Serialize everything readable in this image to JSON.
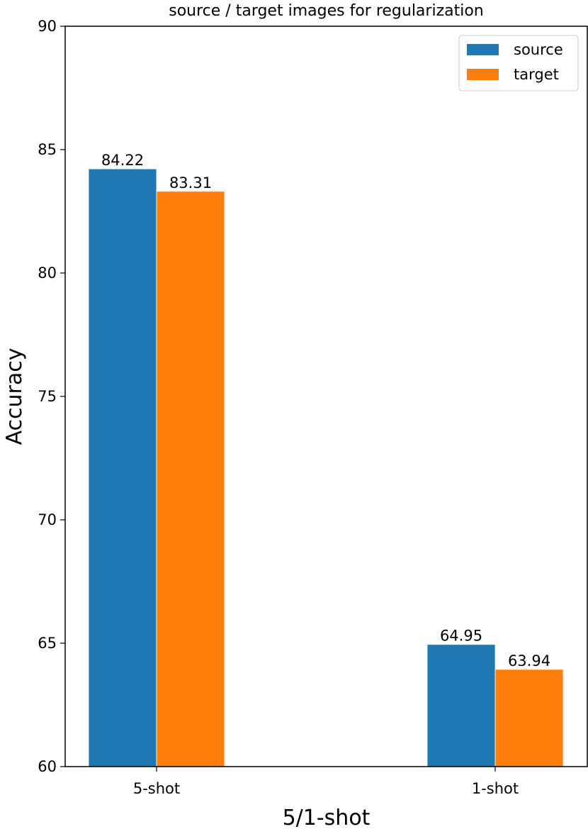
{
  "chart_data": {
    "type": "bar",
    "title": "source / target images for regularization",
    "xlabel": "5/1-shot",
    "ylabel": "Accuracy",
    "categories": [
      "5-shot",
      "1-shot"
    ],
    "series": [
      {
        "name": "source",
        "values": [
          84.22,
          64.95
        ],
        "labels": [
          "84.22",
          "64.95"
        ],
        "color": "#1f77b4"
      },
      {
        "name": "target",
        "values": [
          83.31,
          63.94
        ],
        "labels": [
          "83.31",
          "63.94"
        ],
        "color": "#ff7f0e"
      }
    ],
    "ylim": [
      60,
      90
    ],
    "yticks": [
      60,
      65,
      70,
      75,
      80,
      85,
      90
    ],
    "grid": false,
    "legend_position": "top-right"
  }
}
